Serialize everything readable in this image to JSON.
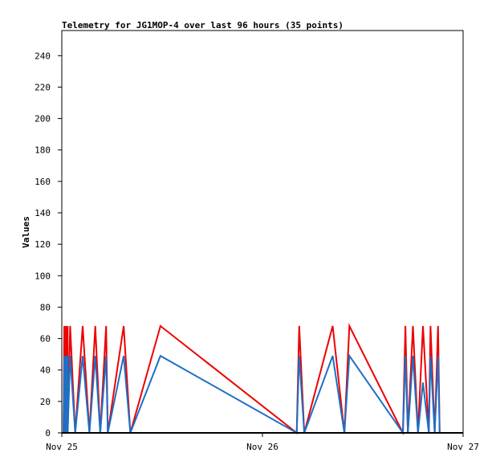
{
  "chart_data": {
    "type": "line",
    "title": "Telemetry for JG1MOP-4 over last 96 hours (35 points)",
    "xlabel": "",
    "ylabel": "Values",
    "ylim": [
      0,
      256
    ],
    "y_ticks": [
      0,
      20,
      40,
      60,
      80,
      100,
      120,
      140,
      160,
      180,
      200,
      220,
      240
    ],
    "x_tick_labels": [
      "Nov 25",
      "Nov 26",
      "Nov 27"
    ],
    "x_range_hours": [
      0,
      48
    ],
    "x_unit": "hours since Nov 25 00:00",
    "grid": false,
    "series": [
      {
        "name": "",
        "color": "#ee0000",
        "x": [
          0.2,
          0.3,
          0.3,
          0.5,
          0.5,
          0.7,
          0.7,
          1.0,
          1.6,
          2.5,
          3.3,
          4.0,
          4.6,
          5.3,
          5.5,
          7.4,
          8.2,
          11.8,
          28.1,
          28.4,
          29.0,
          32.4,
          33.8,
          34.4,
          40.8,
          41.1,
          41.4,
          42.0,
          42.6,
          43.2,
          43.9,
          44.1,
          44.6,
          45.0,
          45.2
        ],
        "values": [
          0,
          68,
          0,
          68,
          0,
          68,
          0,
          68,
          0,
          68,
          0,
          68,
          0,
          68,
          0,
          68,
          0,
          68,
          0,
          68,
          0,
          68,
          0,
          68,
          0,
          68,
          0,
          68,
          0,
          68,
          0,
          68,
          0,
          68,
          0
        ]
      },
      {
        "name": "",
        "color": "#1f6fc5",
        "x": [
          0.2,
          0.3,
          0.3,
          0.5,
          0.5,
          0.7,
          0.7,
          1.0,
          1.6,
          2.5,
          3.3,
          4.0,
          4.6,
          5.3,
          5.5,
          7.4,
          8.2,
          11.8,
          28.1,
          28.4,
          29.0,
          32.4,
          33.8,
          34.4,
          40.8,
          41.1,
          41.4,
          42.0,
          42.6,
          43.2,
          43.9,
          44.1,
          44.6,
          45.0,
          45.2
        ],
        "values": [
          0,
          49,
          0,
          49,
          0,
          49,
          0,
          49,
          0,
          49,
          0,
          49,
          0,
          49,
          0,
          49,
          0,
          49,
          0,
          49,
          0,
          49,
          0,
          49,
          0,
          49,
          0,
          49,
          0,
          32,
          0,
          49,
          0,
          49,
          0
        ]
      },
      {
        "name": "",
        "color": "#000000",
        "x": [
          0,
          48
        ],
        "values": [
          0,
          0
        ]
      }
    ]
  }
}
